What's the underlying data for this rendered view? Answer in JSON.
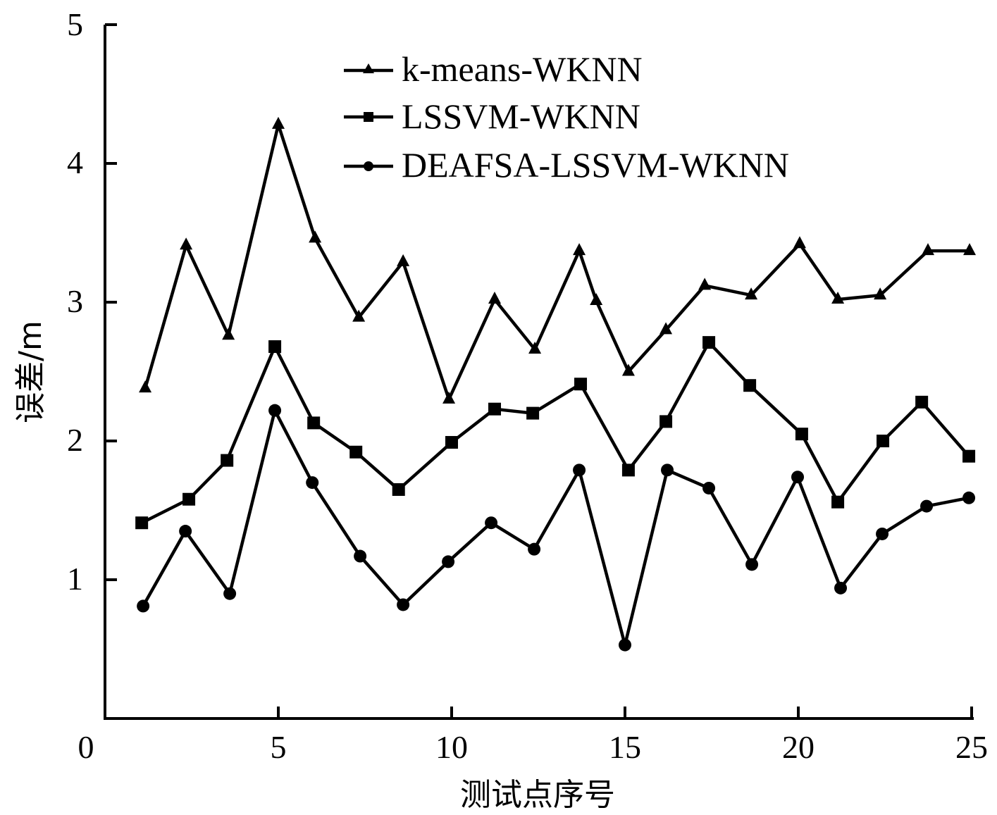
{
  "chart_data": {
    "type": "line",
    "title": "",
    "xlabel": "测试点序号",
    "ylabel": "误差/m",
    "xlim": [
      0,
      25
    ],
    "ylim": [
      0,
      5
    ],
    "x_ticks": [
      0,
      5,
      10,
      15,
      20,
      25
    ],
    "y_ticks": [
      1,
      2,
      3,
      4,
      5
    ],
    "grid": false,
    "legend_position": "upper center",
    "series": [
      {
        "name": "k-means-WKNN",
        "marker": "triangle",
        "x": [
          1.16,
          2.34,
          3.56,
          5.0,
          6.06,
          7.32,
          8.6,
          9.92,
          11.24,
          12.4,
          13.68,
          14.17,
          15.1,
          16.18,
          17.3,
          18.64,
          20.04,
          21.14,
          22.36,
          23.74,
          24.94
        ],
        "values": [
          2.38,
          3.41,
          2.76,
          4.28,
          3.46,
          2.89,
          3.29,
          2.3,
          3.02,
          2.66,
          3.37,
          3.01,
          2.5,
          2.8,
          3.12,
          3.05,
          3.42,
          3.02,
          3.05,
          3.37,
          3.37
        ]
      },
      {
        "name": "LSSVM-WKNN",
        "marker": "square",
        "x": [
          1.06,
          2.42,
          3.52,
          4.9,
          6.02,
          7.24,
          8.47,
          10.0,
          11.24,
          12.34,
          13.72,
          15.1,
          16.18,
          17.42,
          18.6,
          20.1,
          21.14,
          22.44,
          23.56,
          24.92
        ],
        "values": [
          1.41,
          1.58,
          1.86,
          2.68,
          2.13,
          1.92,
          1.65,
          1.99,
          2.23,
          2.2,
          2.41,
          1.79,
          2.14,
          2.71,
          2.4,
          2.05,
          1.56,
          2.0,
          2.28,
          1.89
        ]
      },
      {
        "name": "DEAFSA-LSSVM-WKNN",
        "marker": "circle",
        "x": [
          1.1,
          2.32,
          3.6,
          4.9,
          5.98,
          7.36,
          8.6,
          9.9,
          11.14,
          12.38,
          13.68,
          15.0,
          16.22,
          17.42,
          18.66,
          19.98,
          21.22,
          22.42,
          23.7,
          24.92
        ],
        "values": [
          0.81,
          1.35,
          0.9,
          2.22,
          1.7,
          1.17,
          0.82,
          1.13,
          1.41,
          1.22,
          1.79,
          0.53,
          1.79,
          1.66,
          1.11,
          1.74,
          0.94,
          1.33,
          1.53,
          1.59
        ]
      }
    ]
  },
  "axes": {
    "x_title": "测试点序号",
    "y_title": "误差/m",
    "x_tick_labels": [
      "0",
      "5",
      "10",
      "15",
      "20",
      "25"
    ],
    "y_tick_labels": [
      "1",
      "2",
      "3",
      "4",
      "5"
    ]
  },
  "legend": {
    "items": [
      {
        "label": "k-means-WKNN",
        "marker": "triangle-icon"
      },
      {
        "label": "LSSVM-WKNN",
        "marker": "square-icon"
      },
      {
        "label": "DEAFSA-LSSVM-WKNN",
        "marker": "circle-icon"
      }
    ]
  },
  "colors": {
    "line": "#000000",
    "background": "#ffffff"
  }
}
